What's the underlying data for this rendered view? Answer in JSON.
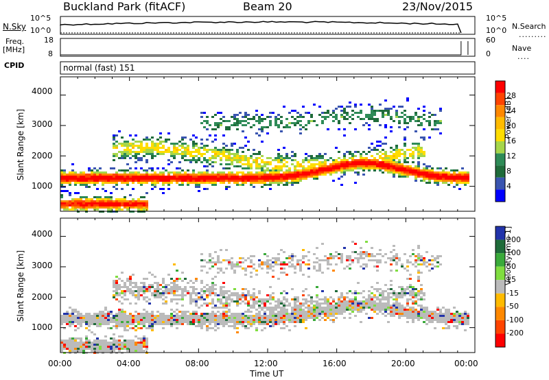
{
  "header": {
    "station": "Buckland Park (fitACF)",
    "beam": "Beam 20",
    "date": "23/Nov/2015"
  },
  "status": {
    "nsky_label": "N.Sky",
    "nsearch_label": "N.Search",
    "noise_ticks": [
      "10^5",
      "10^0"
    ],
    "freq_label_line1": "Freq.",
    "freq_label_line2": "[MHz]",
    "freq_ticks": [
      "18",
      "8"
    ],
    "nave_label": "Nave",
    "nave_ticks": [
      "60",
      "0"
    ],
    "cpid_label": "CPID",
    "cpid_name": "normal (fast) 151"
  },
  "axes": {
    "xlabel": "Time UT",
    "xticks": [
      "00:00",
      "04:00",
      "08:00",
      "12:00",
      "16:00",
      "20:00",
      "00:00"
    ],
    "yticks": [
      "4000",
      "3000",
      "2000",
      "1000"
    ],
    "ylabel": "Slant Range [km]"
  },
  "chart_data": [
    {
      "type": "heatmap",
      "variable": "power",
      "ylabel": "Slant Range [km]",
      "xlabel": "Time UT",
      "x_range_hours": [
        0,
        24
      ],
      "y_range_km": [
        180,
        4600
      ],
      "colorbar": {
        "label": "Power [dB]",
        "ticks": [
          "28",
          "24",
          "20",
          "16",
          "12",
          "8",
          "4"
        ],
        "colors": [
          "#ff0000",
          "#ff4400",
          "#ff8800",
          "#ffbb00",
          "#ffdd00",
          "#a6d64a",
          "#2e8b57",
          "#1f6b3a",
          "#3a55b0",
          "#0000ff"
        ]
      },
      "bands": [
        {
          "t_start": 0,
          "t_end": 23.5,
          "r_start": 1100,
          "r_end": 1700,
          "level": "high"
        },
        {
          "t_start": 0,
          "t_end": 5,
          "r_start": 200,
          "r_end": 700,
          "level": "high"
        },
        {
          "t_start": 3,
          "t_end": 21,
          "r_start": 1600,
          "r_end": 2600,
          "level": "mid"
        },
        {
          "t_start": 8,
          "t_end": 22,
          "r_start": 2600,
          "r_end": 3700,
          "level": "low"
        },
        {
          "t_start": 16,
          "t_end": 20,
          "r_start": 1700,
          "r_end": 2200,
          "level": "high"
        }
      ]
    },
    {
      "type": "heatmap",
      "variable": "velocity",
      "ylabel": "Slant Range [km]",
      "xlabel": "Time UT",
      "x_range_hours": [
        0,
        24
      ],
      "y_range_km": [
        180,
        4600
      ],
      "colorbar": {
        "label": "Velocity [m s-1]",
        "ticks": [
          "200",
          "100",
          "50",
          "15",
          "-15",
          "-50",
          "-100",
          "-200"
        ],
        "colors": [
          "#2233aa",
          "#1f6b3a",
          "#3aaa3a",
          "#80dd40",
          "#bbbbbb",
          "#ffbb00",
          "#ff8800",
          "#ff4400",
          "#ff0000"
        ]
      },
      "ground_scatter_color": "#bbbbbb"
    }
  ]
}
